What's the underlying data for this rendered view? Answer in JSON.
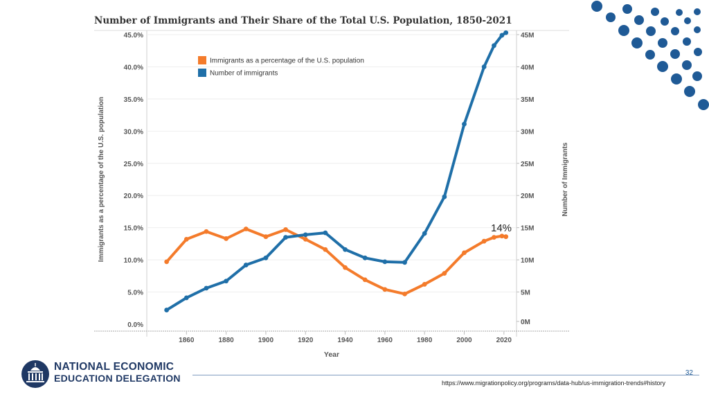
{
  "slide": {
    "page_number": "32",
    "source_url": "https://www.migrationpolicy.org/programs/data-hub/us-immigration-trends#history",
    "logo": {
      "line1": "NATIONAL ECONOMIC",
      "line2": "EDUCATION DELEGATION"
    },
    "colors": {
      "brand_navy": "#1f3864",
      "dot_blue": "#1f5a96"
    }
  },
  "callout": "14%",
  "chart_data": {
    "type": "line",
    "title": "Number of Immigrants and Their Share of the Total U.S. Population, 1850-2021",
    "xlabel": "Year",
    "ylabel_left": "Immigrants as a percentage of the U.S. population",
    "ylabel_right": "Number of Immigrants",
    "x_ticks": [
      "1860",
      "1880",
      "1900",
      "1920",
      "1940",
      "1960",
      "1980",
      "2000",
      "2020"
    ],
    "ylim_left": [
      0,
      45
    ],
    "y_ticks_left": [
      "0.0%",
      "5.0%",
      "10.0%",
      "15.0%",
      "20.0%",
      "25.0%",
      "30.0%",
      "35.0%",
      "40.0%",
      "45.0%"
    ],
    "ylim_right": [
      0,
      45
    ],
    "y_ticks_right": [
      "0M",
      "5M",
      "10M",
      "15M",
      "20M",
      "25M",
      "30M",
      "35M",
      "40M",
      "45M"
    ],
    "legend_position": "top-left",
    "x": [
      1850,
      1860,
      1870,
      1880,
      1890,
      1900,
      1910,
      1920,
      1930,
      1940,
      1950,
      1960,
      1970,
      1980,
      1990,
      2000,
      2010,
      2015,
      2019,
      2021
    ],
    "series": [
      {
        "name": "Immigrants as a percentage of the U.S. population",
        "axis": "left",
        "color": "#f47b2b",
        "values": [
          9.7,
          13.2,
          14.4,
          13.3,
          14.8,
          13.6,
          14.7,
          13.2,
          11.6,
          8.8,
          6.9,
          5.4,
          4.7,
          6.2,
          7.9,
          11.1,
          12.9,
          13.5,
          13.7,
          13.6
        ]
      },
      {
        "name": "Number of immigrants",
        "axis": "right",
        "color": "#1f6fa8",
        "values": [
          2.2,
          4.1,
          5.6,
          6.7,
          9.2,
          10.3,
          13.5,
          13.9,
          14.2,
          11.6,
          10.3,
          9.7,
          9.6,
          14.1,
          19.8,
          31.1,
          40.0,
          43.3,
          44.9,
          45.3
        ]
      }
    ]
  }
}
